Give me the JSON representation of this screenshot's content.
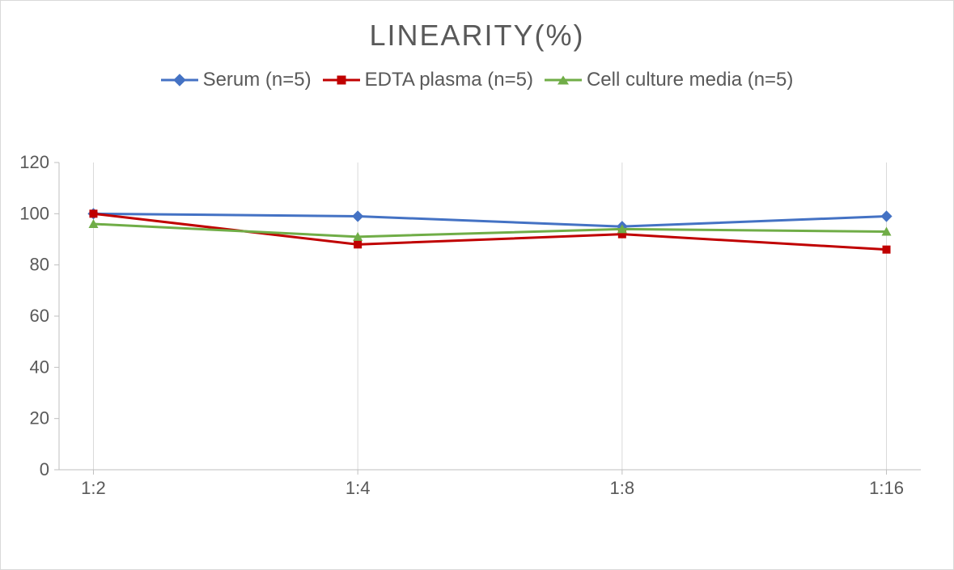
{
  "chart": {
    "type": "line",
    "title": "LINEARITY(%)",
    "title_fontsize": 36,
    "title_color": "#595959",
    "background_color": "#ffffff",
    "border_color": "#d9d9d9",
    "grid_color": "#d9d9d9",
    "axis_color": "#bfbfbf",
    "tick_font_color": "#595959",
    "tick_fontsize": 22,
    "legend_fontsize": 24,
    "legend_position": "top",
    "categories": [
      "1:2",
      "1:4",
      "1:8",
      "1:16"
    ],
    "ylim": [
      0,
      120
    ],
    "ytick_step": 20,
    "yticks": [
      0,
      20,
      40,
      60,
      80,
      100,
      120
    ],
    "line_width": 3,
    "marker_size": 10,
    "series": [
      {
        "name": "Serum (n=5)",
        "color": "#4472c4",
        "marker": "diamond",
        "values": [
          100,
          99,
          95,
          99
        ]
      },
      {
        "name": "EDTA plasma (n=5)",
        "color": "#c00000",
        "marker": "square",
        "values": [
          100,
          88,
          92,
          86
        ]
      },
      {
        "name": "Cell culture media (n=5)",
        "color": "#70ad47",
        "marker": "triangle",
        "values": [
          96,
          91,
          94,
          93
        ]
      }
    ]
  }
}
